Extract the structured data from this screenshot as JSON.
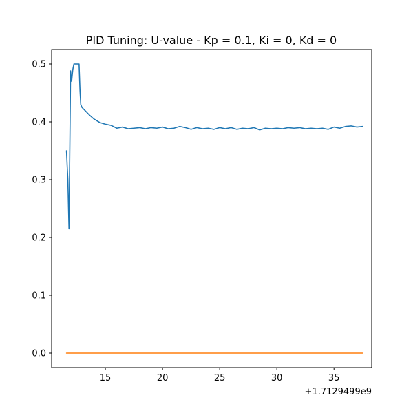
{
  "chart_data": {
    "type": "line",
    "title": "PID Tuning: U-value - Kp = 0.1, Ki = 0, Kd = 0",
    "xlabel": "",
    "ylabel": "",
    "x_offset_label": "+1.7129499e9",
    "xlim": [
      10.3,
      38.3
    ],
    "ylim": [
      -0.025,
      0.525
    ],
    "x_ticks": [
      15,
      20,
      25,
      30,
      35
    ],
    "x_tick_labels": [
      "15",
      "20",
      "25",
      "30",
      "35"
    ],
    "y_ticks": [
      0.0,
      0.1,
      0.2,
      0.3,
      0.4,
      0.5
    ],
    "y_tick_labels": [
      "0.0",
      "0.1",
      "0.2",
      "0.3",
      "0.4",
      "0.5"
    ],
    "grid": false,
    "legend": "none",
    "series": [
      {
        "color": "#1f77b4",
        "x": [
          11.6,
          11.72,
          11.82,
          11.9,
          11.96,
          12.05,
          12.15,
          12.25,
          12.4,
          12.55,
          12.7,
          12.78,
          12.85,
          12.95,
          13.2,
          13.6,
          14.0,
          14.5,
          15.0,
          15.5,
          16.0,
          16.5,
          17.0,
          17.5,
          18.0,
          18.5,
          19.0,
          19.5,
          20.0,
          20.5,
          21.0,
          21.5,
          22.0,
          22.5,
          23.0,
          23.5,
          24.0,
          24.5,
          25.0,
          25.5,
          26.0,
          26.5,
          27.0,
          27.5,
          28.0,
          28.5,
          29.0,
          29.5,
          30.0,
          30.5,
          31.0,
          31.5,
          32.0,
          32.5,
          33.0,
          33.5,
          34.0,
          34.5,
          35.0,
          35.5,
          36.0,
          36.5,
          37.0,
          37.5
        ],
        "y": [
          0.35,
          0.3,
          0.215,
          0.37,
          0.488,
          0.47,
          0.49,
          0.5,
          0.5,
          0.5,
          0.5,
          0.455,
          0.43,
          0.425,
          0.42,
          0.412,
          0.405,
          0.399,
          0.396,
          0.394,
          0.389,
          0.391,
          0.388,
          0.389,
          0.39,
          0.388,
          0.39,
          0.389,
          0.391,
          0.388,
          0.389,
          0.392,
          0.39,
          0.387,
          0.39,
          0.388,
          0.389,
          0.387,
          0.39,
          0.388,
          0.39,
          0.387,
          0.389,
          0.388,
          0.39,
          0.386,
          0.389,
          0.388,
          0.389,
          0.388,
          0.39,
          0.389,
          0.39,
          0.388,
          0.389,
          0.388,
          0.389,
          0.387,
          0.391,
          0.389,
          0.392,
          0.393,
          0.391,
          0.392
        ]
      },
      {
        "color": "#ff7f0e",
        "x": [
          11.6,
          37.5
        ],
        "y": [
          0.0,
          0.0
        ]
      }
    ]
  }
}
